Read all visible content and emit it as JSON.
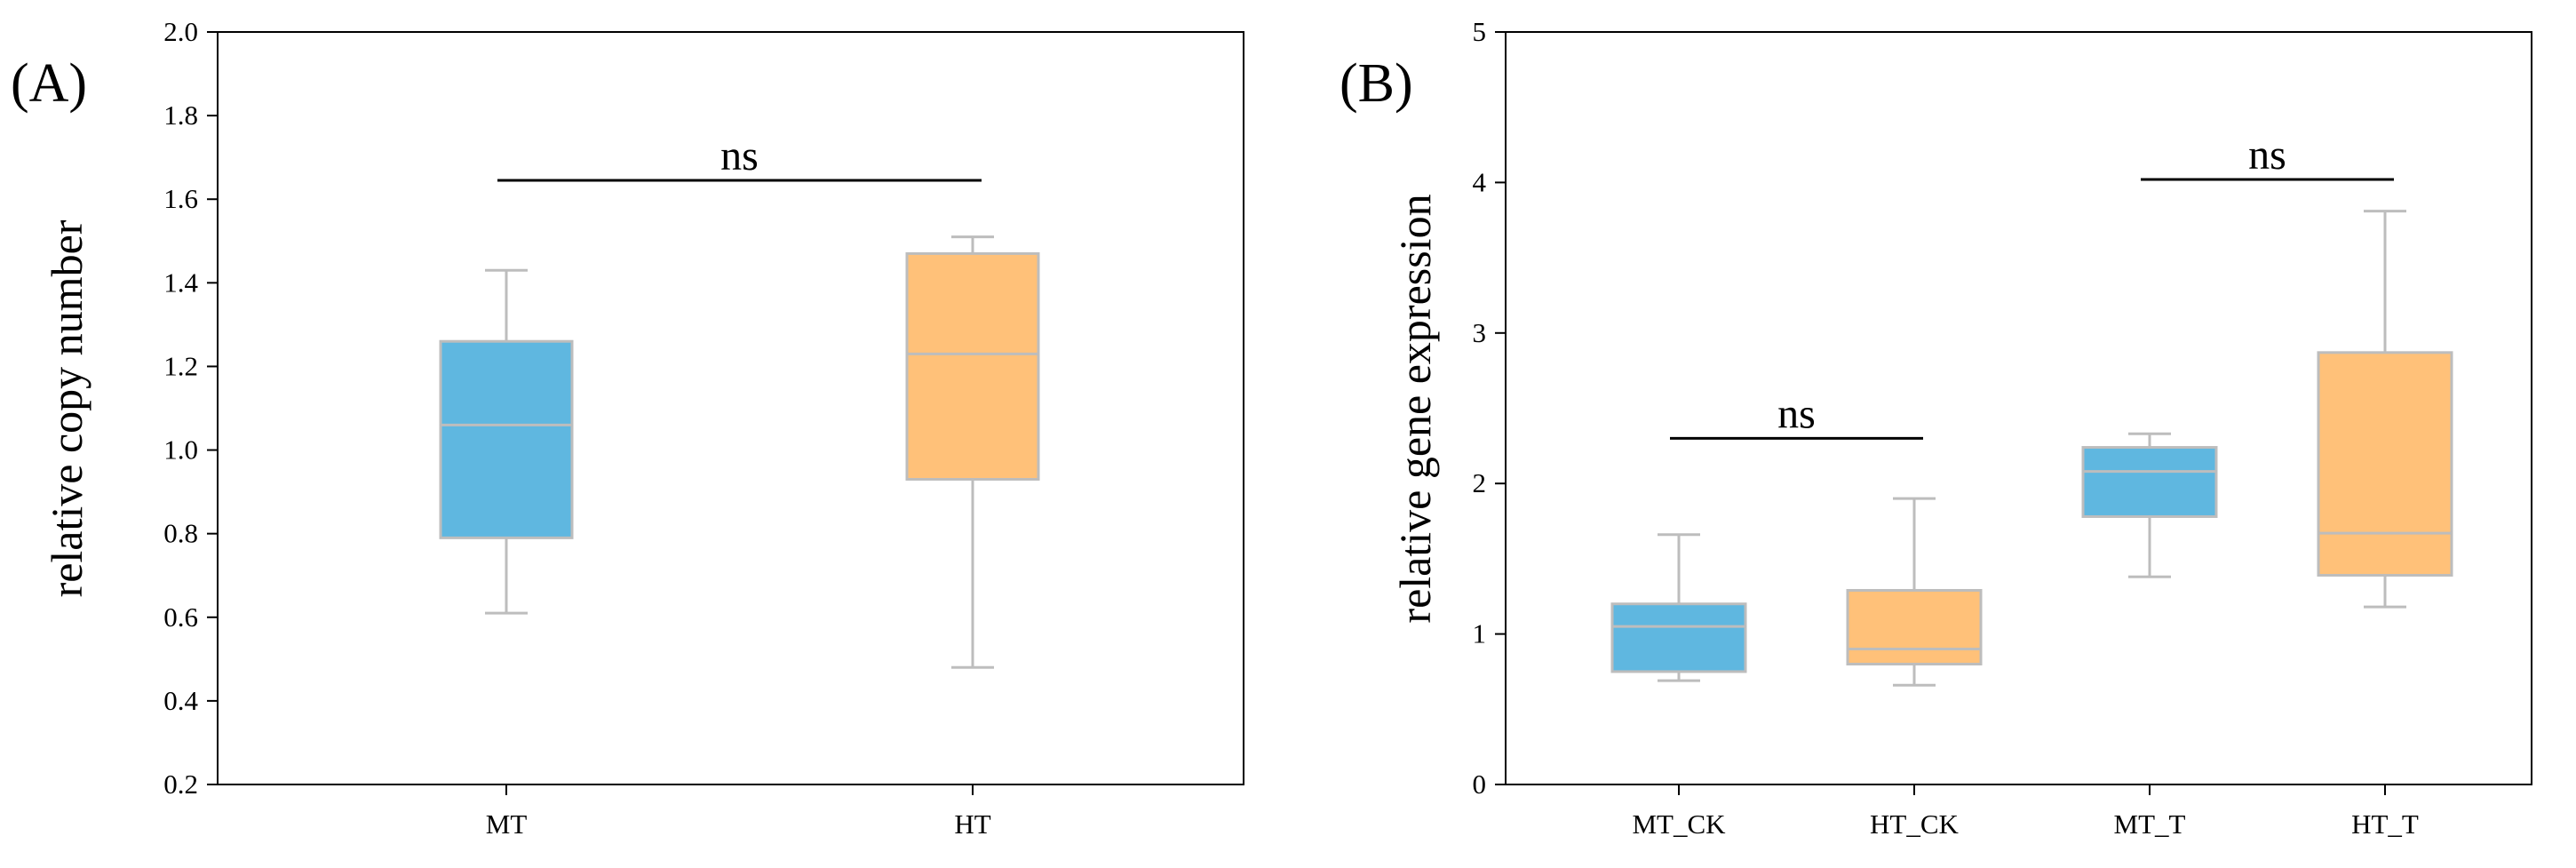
{
  "colors": {
    "mt": "#5fb7e0",
    "ht": "#ffc179",
    "whisker": "#bdbdbd",
    "axis": "#000000"
  },
  "chart_data": [
    {
      "type": "boxplot",
      "panel_label": "(A)",
      "xlabel": "",
      "ylabel": "relative copy number",
      "ylim": [
        0.2,
        2.0
      ],
      "yticks": [
        "0.2",
        "0.4",
        "0.6",
        "0.8",
        "1.0",
        "1.2",
        "1.4",
        "1.6",
        "1.8",
        "2.0"
      ],
      "yticks_values": [
        0.2,
        0.4,
        0.6,
        0.8,
        1.0,
        1.2,
        1.4,
        1.6,
        1.8,
        2.0
      ],
      "categories": [
        "MT",
        "HT"
      ],
      "boxes": [
        {
          "category": "MT",
          "group": "mt",
          "whisker_low": 0.61,
          "q1": 0.79,
          "median": 1.06,
          "q3": 1.26,
          "whisker_high": 1.43
        },
        {
          "category": "HT",
          "group": "ht",
          "whisker_low": 0.48,
          "q1": 0.93,
          "median": 1.23,
          "q3": 1.47,
          "whisker_high": 1.51
        }
      ],
      "annotations": [
        {
          "text": "ns",
          "from": 0,
          "to": 1,
          "y": 1.645
        }
      ]
    },
    {
      "type": "boxplot",
      "panel_label": "(B)",
      "xlabel": "",
      "ylabel": "relative gene expression",
      "ylim": [
        0,
        5
      ],
      "yticks": [
        "0",
        "1",
        "2",
        "3",
        "4",
        "5"
      ],
      "yticks_values": [
        0,
        1,
        2,
        3,
        4,
        5
      ],
      "categories": [
        "MT_CK",
        "HT_CK",
        "MT_T",
        "HT_T"
      ],
      "boxes": [
        {
          "category": "MT_CK",
          "group": "mt",
          "whisker_low": 0.69,
          "q1": 0.75,
          "median": 1.05,
          "q3": 1.2,
          "whisker_high": 1.66
        },
        {
          "category": "HT_CK",
          "group": "ht",
          "whisker_low": 0.66,
          "q1": 0.8,
          "median": 0.9,
          "q3": 1.29,
          "whisker_high": 1.9
        },
        {
          "category": "MT_T",
          "group": "mt",
          "whisker_low": 1.38,
          "q1": 1.78,
          "median": 2.08,
          "q3": 2.24,
          "whisker_high": 2.33
        },
        {
          "category": "HT_T",
          "group": "ht",
          "whisker_low": 1.18,
          "q1": 1.39,
          "median": 1.67,
          "q3": 2.87,
          "whisker_high": 3.81
        }
      ],
      "annotations": [
        {
          "text": "ns",
          "from": 0,
          "to": 1,
          "y": 2.3
        },
        {
          "text": "ns",
          "from": 2,
          "to": 3,
          "y": 4.02
        }
      ]
    }
  ]
}
